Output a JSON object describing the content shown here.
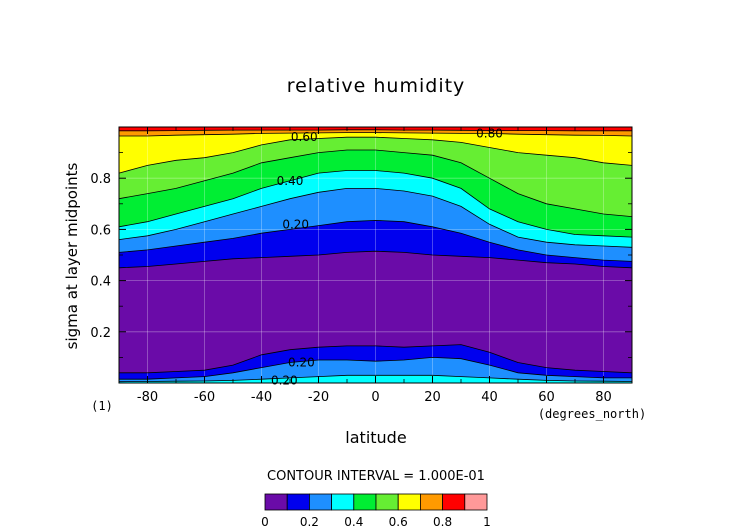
{
  "chart_data": {
    "type": "contour",
    "title": "relative humidity",
    "xlabel": "latitude",
    "ylabel": "sigma at layer midpoints",
    "x_units": "(degrees_north)",
    "corner_label": "(1)",
    "xlim": [
      -90,
      90
    ],
    "ylim": [
      0,
      1
    ],
    "x_ticks": [
      -80,
      -60,
      -40,
      -20,
      0,
      20,
      40,
      60,
      80
    ],
    "y_ticks": [
      0.2,
      0.4,
      0.6,
      0.8
    ],
    "grid": true,
    "contour_interval_text": "CONTOUR INTERVAL = 1.000E-01",
    "contour_labels": [
      {
        "text": "0.80",
        "lat": 40,
        "sigma": 0.975
      },
      {
        "text": "0.60",
        "lat": -25,
        "sigma": 0.96
      },
      {
        "text": "0.40",
        "lat": -30,
        "sigma": 0.79
      },
      {
        "text": "0.20",
        "lat": -28,
        "sigma": 0.62
      },
      {
        "text": "0.20",
        "lat": -26,
        "sigma": 0.08
      },
      {
        "text": "0.20",
        "lat": -32,
        "sigma": 0.01
      }
    ],
    "levels": [
      0,
      0.1,
      0.2,
      0.3,
      0.4,
      0.5,
      0.6,
      0.7,
      0.8,
      0.9,
      1.0
    ],
    "level_colors": [
      "#6a0ba8",
      "#0000ee",
      "#1e8fff",
      "#00ffff",
      "#00ee33",
      "#66ee33",
      "#ffff00",
      "#ff9a00",
      "#ff0000",
      "#ff9999"
    ],
    "colorbar": {
      "tick_labels": [
        "0",
        "0.2",
        "0.4",
        "0.6",
        "0.8",
        "1"
      ],
      "tick_values": [
        0,
        0.2,
        0.4,
        0.6,
        0.8,
        1.0
      ]
    },
    "field": {
      "lat": [
        -90,
        -80,
        -70,
        -60,
        -50,
        -40,
        -30,
        -20,
        -10,
        0,
        10,
        20,
        30,
        40,
        50,
        60,
        70,
        80,
        90
      ],
      "contours": [
        {
          "level": 0.1,
          "sigma": [
            0.45,
            0.455,
            0.465,
            0.475,
            0.485,
            0.49,
            0.495,
            0.5,
            0.51,
            0.515,
            0.51,
            0.5,
            0.495,
            0.49,
            0.48,
            0.47,
            0.465,
            0.455,
            0.45
          ]
        },
        {
          "level": 0.2,
          "sigma": [
            0.51,
            0.52,
            0.535,
            0.55,
            0.565,
            0.585,
            0.6,
            0.615,
            0.63,
            0.635,
            0.63,
            0.61,
            0.585,
            0.55,
            0.52,
            0.5,
            0.49,
            0.48,
            0.475
          ]
        },
        {
          "level": 0.3,
          "sigma": [
            0.56,
            0.575,
            0.6,
            0.63,
            0.66,
            0.69,
            0.72,
            0.745,
            0.76,
            0.76,
            0.75,
            0.73,
            0.69,
            0.62,
            0.57,
            0.55,
            0.54,
            0.535,
            0.53
          ]
        },
        {
          "level": 0.4,
          "sigma": [
            0.61,
            0.63,
            0.66,
            0.69,
            0.72,
            0.76,
            0.79,
            0.82,
            0.83,
            0.83,
            0.82,
            0.8,
            0.76,
            0.68,
            0.63,
            0.6,
            0.58,
            0.575,
            0.57
          ]
        },
        {
          "level": 0.5,
          "sigma": [
            0.72,
            0.74,
            0.76,
            0.79,
            0.82,
            0.86,
            0.88,
            0.9,
            0.91,
            0.91,
            0.9,
            0.89,
            0.86,
            0.8,
            0.74,
            0.7,
            0.68,
            0.66,
            0.65
          ]
        },
        {
          "level": 0.6,
          "sigma": [
            0.82,
            0.85,
            0.87,
            0.88,
            0.9,
            0.93,
            0.95,
            0.955,
            0.96,
            0.96,
            0.955,
            0.95,
            0.94,
            0.92,
            0.9,
            0.89,
            0.88,
            0.86,
            0.85
          ]
        },
        {
          "level": 0.7,
          "sigma": [
            0.965,
            0.965,
            0.968,
            0.97,
            0.972,
            0.975,
            0.976,
            0.977,
            0.978,
            0.978,
            0.977,
            0.976,
            0.975,
            0.975,
            0.972,
            0.97,
            0.968,
            0.967,
            0.965
          ]
        },
        {
          "level": 0.8,
          "sigma": [
            0.985,
            0.985,
            0.986,
            0.987,
            0.988,
            0.988,
            0.988,
            0.988,
            0.989,
            0.989,
            0.988,
            0.988,
            0.987,
            0.986,
            0.986,
            0.986,
            0.985,
            0.985,
            0.985
          ]
        }
      ],
      "lower_contours": [
        {
          "level": 0.1,
          "sigma": [
            0.04,
            0.04,
            0.045,
            0.05,
            0.07,
            0.11,
            0.13,
            0.14,
            0.145,
            0.145,
            0.14,
            0.145,
            0.15,
            0.12,
            0.08,
            0.06,
            0.05,
            0.045,
            0.04
          ]
        },
        {
          "level": 0.2,
          "sigma": [
            0.015,
            0.015,
            0.02,
            0.025,
            0.04,
            0.06,
            0.08,
            0.09,
            0.09,
            0.085,
            0.09,
            0.1,
            0.095,
            0.07,
            0.04,
            0.03,
            0.025,
            0.02,
            0.02
          ]
        },
        {
          "level": 0.3,
          "sigma": [
            0.005,
            0.006,
            0.007,
            0.008,
            0.01,
            0.015,
            0.02,
            0.025,
            0.03,
            0.03,
            0.03,
            0.03,
            0.025,
            0.02,
            0.015,
            0.01,
            0.008,
            0.007,
            0.006
          ]
        }
      ]
    }
  }
}
